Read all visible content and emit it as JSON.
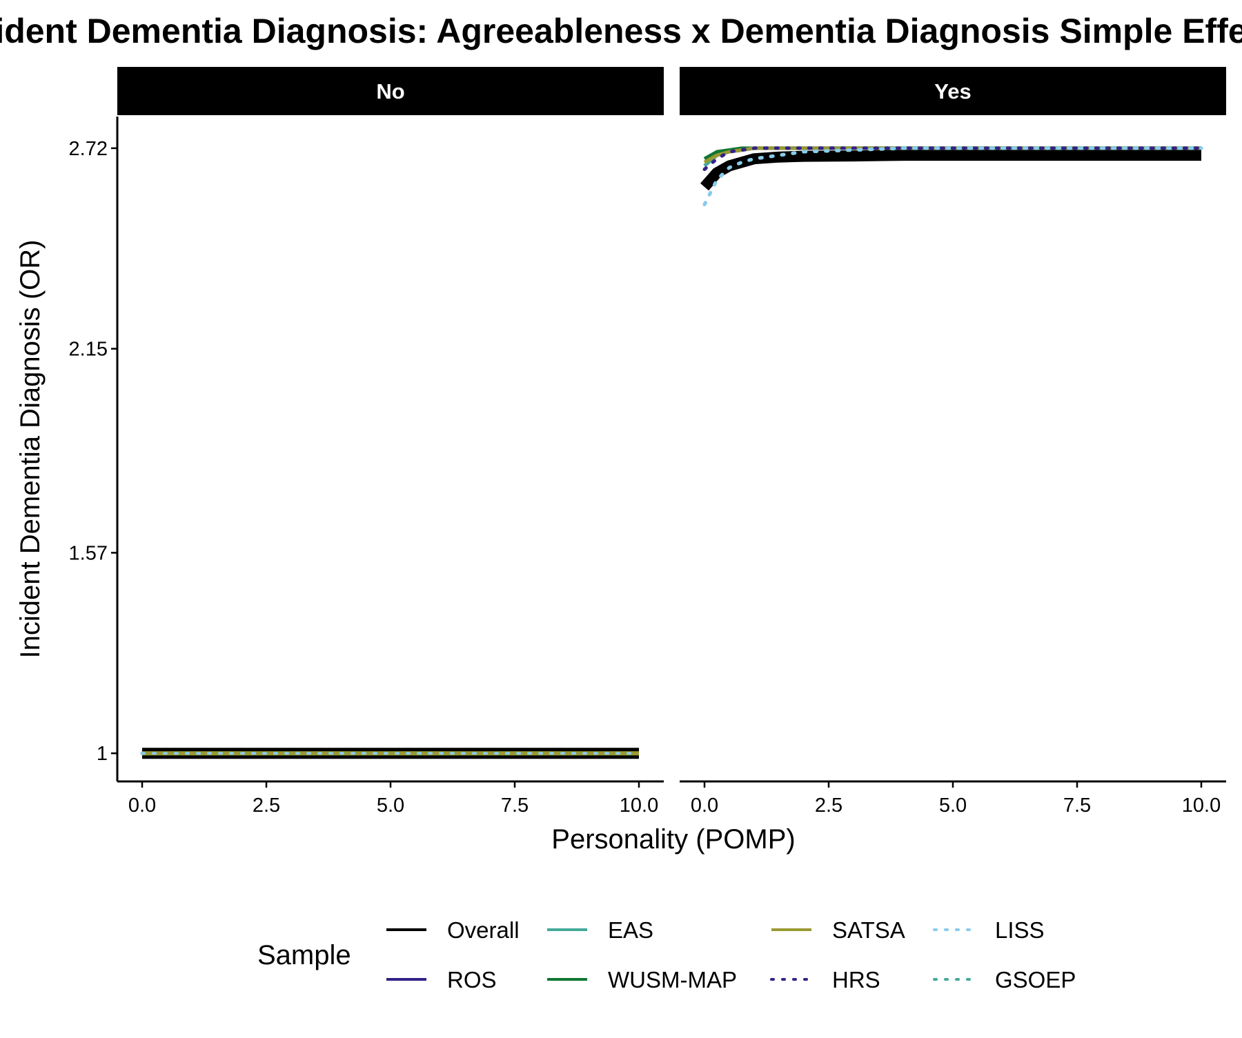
{
  "chart_data": {
    "type": "line",
    "title": "Incident Dementia Diagnosis: Agreeableness x Dementia Diagnosis Simple Effects",
    "xlabel": "Personality (POMP)",
    "ylabel": "Incident Dementia Diagnosis (OR)",
    "xlim": [
      -0.5,
      10.5
    ],
    "ylim": [
      0.92,
      2.81
    ],
    "y_scale": "linear",
    "grid": false,
    "x_ticks": [
      "0.0",
      "2.5",
      "5.0",
      "7.5",
      "10.0"
    ],
    "x_tick_values": [
      0,
      2.5,
      5,
      7.5,
      10
    ],
    "y_ticks": [
      "1",
      "1.57",
      "2.15",
      "2.72"
    ],
    "y_tick_values": [
      1,
      1.57,
      2.15,
      2.72
    ],
    "legend": {
      "title": "Sample",
      "placement": "bottom"
    },
    "x": [
      0,
      0.25,
      0.5,
      0.75,
      1,
      1.5,
      2,
      3,
      4,
      5,
      6,
      7,
      8,
      9,
      10
    ],
    "panels": [
      {
        "label": "No",
        "series": [
          {
            "name": "Overall",
            "color": "#000000",
            "dash": "solid",
            "values": [
              1.0,
              1.0,
              1.0,
              1.0,
              1.0,
              1.0,
              1.0,
              1.0,
              1.0,
              1.0,
              1.0,
              1.0,
              1.0,
              1.0,
              1.0
            ]
          },
          {
            "name": "ROS",
            "color": "#332288",
            "dash": "solid",
            "values": [
              1.0,
              1.0,
              1.0,
              1.0,
              1.0,
              1.0,
              1.0,
              1.0,
              1.0,
              1.0,
              1.0,
              1.0,
              1.0,
              1.0,
              1.0
            ]
          },
          {
            "name": "EAS",
            "color": "#44AA99",
            "dash": "solid",
            "values": [
              1.0,
              1.0,
              1.0,
              1.0,
              1.0,
              1.0,
              1.0,
              1.0,
              1.0,
              1.0,
              1.0,
              1.0,
              1.0,
              1.0,
              1.0
            ]
          },
          {
            "name": "WUSM-MAP",
            "color": "#117733",
            "dash": "solid",
            "values": [
              1.0,
              1.0,
              1.0,
              1.0,
              1.0,
              1.0,
              1.0,
              1.0,
              1.0,
              1.0,
              1.0,
              1.0,
              1.0,
              1.0,
              1.0
            ]
          },
          {
            "name": "SATSA",
            "color": "#999933",
            "dash": "solid",
            "values": [
              1.0,
              1.0,
              1.0,
              1.0,
              1.0,
              1.0,
              1.0,
              1.0,
              1.0,
              1.0,
              1.0,
              1.0,
              1.0,
              1.0,
              1.0
            ]
          },
          {
            "name": "HRS",
            "color": "#332288",
            "dash": "dotted",
            "values": [
              1.0,
              1.0,
              1.0,
              1.0,
              1.0,
              1.0,
              1.0,
              1.0,
              1.0,
              1.0,
              1.0,
              1.0,
              1.0,
              1.0,
              1.0
            ]
          },
          {
            "name": "LISS",
            "color": "#88CCEE",
            "dash": "dotted",
            "values": [
              1.0,
              1.0,
              1.0,
              1.0,
              1.0,
              1.0,
              1.0,
              1.0,
              1.0,
              1.0,
              1.0,
              1.0,
              1.0,
              1.0,
              1.0
            ]
          },
          {
            "name": "GSOEP",
            "color": "#44AA99",
            "dash": "dotted",
            "values": [
              1.0,
              1.0,
              1.0,
              1.0,
              1.0,
              1.0,
              1.0,
              1.0,
              1.0,
              1.0,
              1.0,
              1.0,
              1.0,
              1.0,
              1.0
            ]
          }
        ]
      },
      {
        "label": "Yes",
        "series": [
          {
            "name": "Overall",
            "color": "#000000",
            "dash": "solid",
            "values": [
              2.61,
              2.65,
              2.67,
              2.68,
              2.69,
              2.695,
              2.697,
              2.698,
              2.7,
              2.7,
              2.7,
              2.7,
              2.7,
              2.7,
              2.7
            ]
          },
          {
            "name": "ROS",
            "color": "#332288",
            "dash": "solid",
            "values": [
              2.67,
              2.7,
              2.71,
              2.715,
              2.72,
              2.72,
              2.72,
              2.72,
              2.72,
              2.72,
              2.72,
              2.72,
              2.72,
              2.72,
              2.72
            ]
          },
          {
            "name": "EAS",
            "color": "#44AA99",
            "dash": "solid",
            "values": [
              2.67,
              2.7,
              2.71,
              2.715,
              2.72,
              2.72,
              2.72,
              2.72,
              2.72,
              2.72,
              2.72,
              2.72,
              2.72,
              2.72,
              2.72
            ]
          },
          {
            "name": "WUSM-MAP",
            "color": "#117733",
            "dash": "solid",
            "values": [
              2.69,
              2.71,
              2.715,
              2.72,
              2.72,
              2.72,
              2.72,
              2.72,
              2.72,
              2.72,
              2.72,
              2.72,
              2.72,
              2.72,
              2.72
            ]
          },
          {
            "name": "SATSA",
            "color": "#999933",
            "dash": "solid",
            "values": [
              2.68,
              2.7,
              2.71,
              2.715,
              2.72,
              2.72,
              2.72,
              2.72,
              2.72,
              2.72,
              2.72,
              2.72,
              2.72,
              2.72,
              2.72
            ]
          },
          {
            "name": "HRS",
            "color": "#332288",
            "dash": "dotted",
            "values": [
              2.66,
              2.69,
              2.71,
              2.715,
              2.72,
              2.72,
              2.72,
              2.72,
              2.72,
              2.72,
              2.72,
              2.72,
              2.72,
              2.72,
              2.72
            ]
          },
          {
            "name": "LISS",
            "color": "#88CCEE",
            "dash": "dotted",
            "values": [
              2.56,
              2.63,
              2.665,
              2.68,
              2.69,
              2.7,
              2.71,
              2.715,
              2.72,
              2.72,
              2.72,
              2.72,
              2.72,
              2.72,
              2.72
            ]
          },
          {
            "name": "GSOEP",
            "color": "#44AA99",
            "dash": "dotted",
            "values": [
              2.56,
              2.63,
              2.665,
              2.68,
              2.69,
              2.7,
              2.71,
              2.715,
              2.72,
              2.72,
              2.72,
              2.72,
              2.72,
              2.72,
              2.72
            ]
          }
        ]
      }
    ]
  }
}
